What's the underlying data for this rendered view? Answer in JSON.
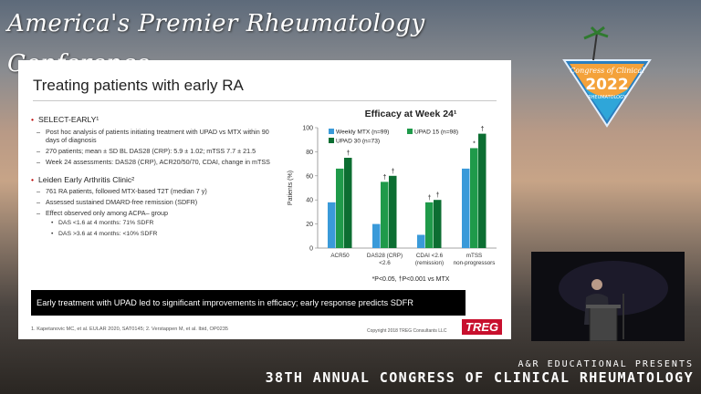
{
  "banner": {
    "title": "America's Premier Rheumatology Conference"
  },
  "logo": {
    "line1": "Congress of Clinical",
    "year": "2022",
    "line2": "RHEUMATOLOGY"
  },
  "slide": {
    "title": "Treating patients with early RA",
    "bullets": [
      {
        "text": "SELECT-EARLY¹",
        "subs": [
          "Post hoc analysis of patients initiating treatment with UPAD vs MTX within 90 days of diagnosis",
          "270 patients; mean ± SD BL DAS28 (CRP): 5.9 ± 1.02; mTSS 7.7 ± 21.5",
          "Week 24 assessments: DAS28 (CRP), ACR20/50/70, CDAI, change in mTSS"
        ]
      },
      {
        "text": "Leiden Early Arthritis Clinic²",
        "subs": [
          "761 RA patients, followed MTX-based T2T (median 7 y)",
          "Assessed sustained DMARD-free remission (SDFR)",
          "Effect observed only among ACPA– group"
        ],
        "subsubs": [
          "DAS <1.6 at 4 months: 71% SDFR",
          "DAS >3.6 at 4 months: <10% SDFR"
        ]
      }
    ],
    "callout": "Early treatment with UPAD led to significant improvements in efficacy; early response predicts SDFR",
    "references": "1. Kapetanovic MC, et al. EULAR 2020, SAT0145; 2. Verstappen M, et al. Ibid, OP0235",
    "copyright": "Copyright 2018 TREG Consultants LLC",
    "brand": "TREG"
  },
  "chart_data": {
    "type": "bar",
    "title": "Efficacy at Week 24¹",
    "ylabel": "Patients (%)",
    "ylim": [
      0,
      100
    ],
    "yticks": [
      0,
      20,
      40,
      60,
      80,
      100
    ],
    "categories": [
      "ACR50",
      "DAS28 (CRP) <2.6",
      "CDAI <2.6 (remission)",
      "mTSS non-progressors"
    ],
    "category_lines": [
      [
        "ACR50"
      ],
      [
        "DAS28 (CRP)",
        "<2.6"
      ],
      [
        "CDAI <2.6",
        "(remission)"
      ],
      [
        "mTSS",
        "non-progressors"
      ]
    ],
    "series": [
      {
        "name": "Weekly MTX (n=99)",
        "color": "#3a9ad9",
        "values": [
          38,
          20,
          11,
          66
        ]
      },
      {
        "name": "UPAD 15 (n=98)",
        "color": "#1f9a4a",
        "values": [
          66,
          55,
          38,
          83
        ]
      },
      {
        "name": "UPAD 30 (n=73)",
        "color": "#0c6e32",
        "values": [
          75,
          60,
          40,
          95
        ]
      }
    ],
    "annotations": [
      {
        "category": 0,
        "series": 2,
        "text": "†"
      },
      {
        "category": 1,
        "series": 1,
        "text": "†"
      },
      {
        "category": 1,
        "series": 2,
        "text": "†"
      },
      {
        "category": 2,
        "series": 1,
        "text": "†"
      },
      {
        "category": 2,
        "series": 2,
        "text": "†"
      },
      {
        "category": 3,
        "series": 1,
        "text": "*"
      },
      {
        "category": 3,
        "series": 2,
        "text": "†"
      }
    ],
    "footnote": "*P<0.05, †P<0.001 vs MTX",
    "legend_position": "top-left"
  },
  "lower_third": {
    "line1": "A&R EDUCATIONAL PRESENTS",
    "line2": "38TH ANNUAL CONGRESS OF CLINICAL RHEUMATOLOGY"
  }
}
